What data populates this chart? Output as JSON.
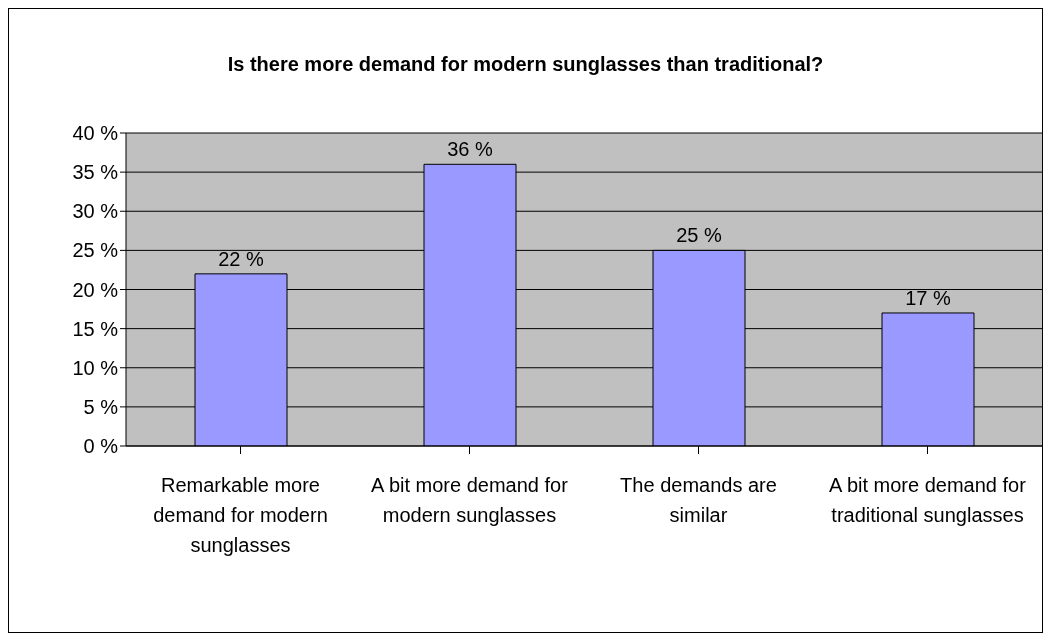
{
  "chart_data": {
    "type": "bar",
    "title": "Is there more demand for modern sunglasses than traditional?",
    "categories": [
      "Remarkable more demand for modern sunglasses",
      "A bit more demand for modern sunglasses",
      "The demands are similar",
      "A bit more demand for traditional sunglasses"
    ],
    "values": [
      22,
      36,
      25,
      17
    ],
    "value_labels": [
      "22 %",
      "36 %",
      "25 %",
      "17 %"
    ],
    "color": "#9999ff",
    "ylim": [
      0,
      40
    ],
    "yticks": [
      {
        "value": 0,
        "label": "0 %"
      },
      {
        "value": 5,
        "label": "5 %"
      },
      {
        "value": 10,
        "label": "10 %"
      },
      {
        "value": 15,
        "label": "15 %"
      },
      {
        "value": 20,
        "label": "20 %"
      },
      {
        "value": 25,
        "label": "25 %"
      },
      {
        "value": 30,
        "label": "30 %"
      },
      {
        "value": 35,
        "label": "35 %"
      },
      {
        "value": 40,
        "label": "40 %"
      }
    ],
    "grid": "y",
    "legend": false
  }
}
